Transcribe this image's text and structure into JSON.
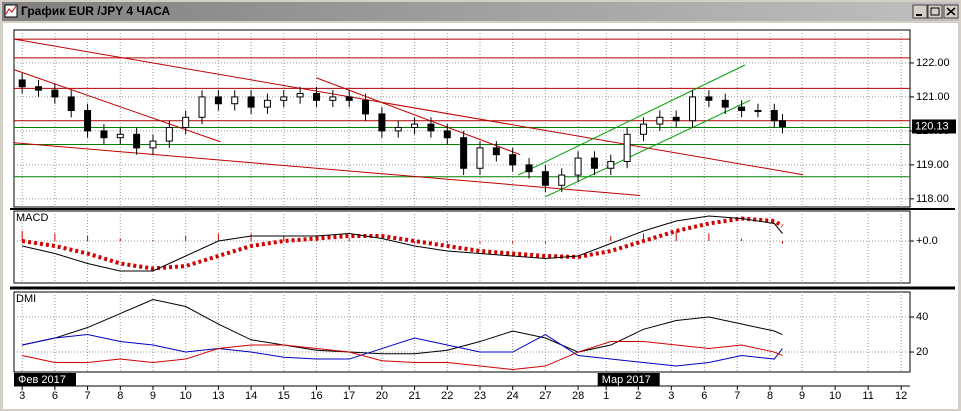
{
  "window": {
    "title": "График EUR /JPY 4 ЧАСА"
  },
  "chart_data": [
    {
      "type": "candlestick",
      "xlim": [
        -0.25,
        27.15
      ],
      "ylim": [
        117.76,
        122.97
      ],
      "yticks": [
        {
          "value": 122,
          "label": "122.00"
        },
        {
          "value": 121,
          "label": "121.00"
        },
        {
          "value": 120,
          "label": "120.00"
        },
        {
          "value": 119,
          "label": "119.00"
        },
        {
          "value": 118,
          "label": "118.00"
        }
      ],
      "grid": true,
      "last_price": 120.13,
      "x": [
        0,
        0.5,
        1,
        1.5,
        2,
        2.5,
        3,
        3.5,
        4,
        4.5,
        5,
        5.5,
        6,
        6.5,
        7,
        7.5,
        8,
        8.5,
        9,
        9.5,
        10,
        10.5,
        11,
        11.5,
        12,
        12.5,
        13,
        13.5,
        14,
        14.5,
        15,
        15.5,
        16,
        16.5,
        17,
        17.5,
        18,
        18.5,
        19,
        19.5,
        20,
        20.5,
        21,
        21.5,
        22,
        22.5,
        23,
        23.25
      ],
      "open": [
        121.5,
        121.3,
        121.2,
        121.0,
        120.6,
        120.0,
        119.8,
        119.9,
        119.5,
        119.7,
        120.1,
        120.4,
        121.0,
        120.8,
        121.0,
        120.7,
        120.9,
        121.0,
        121.1,
        120.9,
        121.0,
        120.9,
        120.5,
        120.0,
        120.1,
        120.2,
        120.0,
        119.8,
        118.9,
        119.5,
        119.3,
        119.0,
        118.8,
        118.4,
        118.7,
        119.2,
        118.9,
        119.1,
        119.9,
        120.2,
        120.4,
        120.3,
        121.0,
        120.9,
        120.7,
        120.6,
        120.6,
        120.3
      ],
      "high": [
        121.7,
        121.5,
        121.4,
        121.2,
        120.8,
        120.2,
        120.1,
        120.1,
        119.9,
        120.3,
        120.6,
        121.2,
        121.2,
        121.2,
        121.2,
        121.1,
        121.2,
        121.3,
        121.3,
        121.2,
        121.2,
        121.1,
        120.7,
        120.3,
        120.4,
        120.4,
        120.2,
        120.0,
        119.7,
        119.7,
        119.5,
        119.2,
        119.0,
        118.9,
        119.4,
        119.4,
        119.3,
        120.1,
        120.4,
        120.6,
        120.6,
        121.2,
        121.2,
        121.1,
        120.9,
        120.8,
        120.8,
        120.5
      ],
      "low": [
        121.1,
        121.0,
        120.8,
        120.4,
        119.8,
        119.6,
        119.6,
        119.3,
        119.3,
        119.5,
        119.9,
        120.2,
        120.6,
        120.6,
        120.5,
        120.5,
        120.7,
        120.8,
        120.7,
        120.7,
        120.7,
        120.3,
        119.8,
        119.8,
        119.9,
        119.8,
        119.6,
        118.7,
        118.7,
        119.1,
        118.8,
        118.6,
        118.2,
        118.2,
        118.5,
        118.7,
        118.7,
        118.9,
        119.7,
        120.0,
        120.1,
        120.1,
        120.7,
        120.5,
        120.4,
        120.4,
        120.1,
        119.93
      ],
      "close": [
        121.3,
        121.2,
        121.0,
        120.6,
        120.0,
        119.8,
        119.9,
        119.5,
        119.7,
        120.1,
        120.4,
        121.0,
        120.8,
        121.0,
        120.7,
        120.9,
        121.0,
        121.1,
        120.9,
        121.0,
        120.9,
        120.5,
        120.0,
        120.1,
        120.2,
        120.0,
        119.8,
        118.9,
        119.5,
        119.3,
        119.0,
        118.8,
        118.4,
        118.7,
        119.2,
        118.9,
        119.1,
        119.9,
        120.2,
        120.4,
        120.3,
        121.0,
        120.9,
        120.7,
        120.6,
        120.6,
        120.3,
        120.13
      ],
      "levels": [
        {
          "value": 122.7,
          "color": "#b00000"
        },
        {
          "value": 122.15,
          "color": "#b00000"
        },
        {
          "value": 121.25,
          "color": "#b00000"
        },
        {
          "value": 120.3,
          "color": "#b00000"
        },
        {
          "value": 120.1,
          "color": "#008000"
        },
        {
          "value": 119.6,
          "color": "#008000"
        },
        {
          "value": 118.65,
          "color": "#008000"
        }
      ],
      "trendlines": [
        {
          "x": [
            -0.24,
            23.88
          ],
          "y": [
            122.7,
            118.71
          ],
          "color": "#c00000"
        },
        {
          "x": [
            -0.24,
            6.06
          ],
          "y": [
            121.8,
            119.68
          ],
          "color": "#c00000"
        },
        {
          "x": [
            -0.24,
            18.9
          ],
          "y": [
            119.65,
            118.1
          ],
          "color": "#c00000"
        },
        {
          "x": [
            9.0,
            15.23
          ],
          "y": [
            121.56,
            119.3
          ],
          "color": "#c00000"
        },
        {
          "x": [
            15.17,
            22.1
          ],
          "y": [
            118.7,
            121.94
          ],
          "color": "#00a000"
        },
        {
          "x": [
            16.0,
            22.26
          ],
          "y": [
            118.06,
            120.9
          ],
          "color": "#00a000"
        }
      ]
    },
    {
      "type": "line",
      "title": "MACD",
      "xlim": [
        -0.25,
        27.15
      ],
      "ylim": [
        -0.84,
        0.6
      ],
      "yticks": [
        {
          "value": 0,
          "label": "+0.0"
        }
      ],
      "grid": true,
      "x": [
        0,
        1,
        2,
        3,
        4,
        5,
        6,
        7,
        8,
        9,
        10,
        11,
        12,
        13,
        14,
        15,
        16,
        17,
        18,
        19,
        20,
        21,
        22,
        23,
        23.25
      ],
      "series": [
        {
          "name": "histogram",
          "style": "bar",
          "color": "#d00000",
          "values": [
            0.2,
            0.15,
            0.1,
            0.05,
            0.02,
            0.1,
            0.15,
            0.15,
            0.1,
            0.05,
            0.05,
            0.0,
            -0.05,
            -0.05,
            -0.05,
            -0.05,
            -0.05,
            0.0,
            0.1,
            0.15,
            0.2,
            0.15,
            0.05,
            0.0,
            -0.05
          ]
        },
        {
          "name": "signal",
          "style": "dotted",
          "color": "#d00000",
          "values": [
            0.0,
            -0.1,
            -0.25,
            -0.45,
            -0.55,
            -0.5,
            -0.3,
            -0.1,
            0.0,
            0.05,
            0.1,
            0.1,
            0.0,
            -0.1,
            -0.2,
            -0.25,
            -0.3,
            -0.32,
            -0.2,
            0.0,
            0.2,
            0.35,
            0.45,
            0.4,
            0.3
          ]
        },
        {
          "name": "macd",
          "style": "line",
          "color": "#000000",
          "values": [
            -0.1,
            -0.25,
            -0.45,
            -0.6,
            -0.6,
            -0.3,
            0.0,
            0.1,
            0.1,
            0.1,
            0.15,
            0.05,
            -0.1,
            -0.2,
            -0.25,
            -0.3,
            -0.35,
            -0.3,
            -0.05,
            0.2,
            0.4,
            0.5,
            0.45,
            0.35,
            0.15
          ]
        }
      ]
    },
    {
      "type": "line",
      "title": "DMI",
      "xlim": [
        -0.25,
        27.15
      ],
      "ylim": [
        8.6,
        54.3
      ],
      "yticks": [
        40,
        20
      ],
      "grid": true,
      "x": [
        0,
        1,
        2,
        3,
        4,
        5,
        6,
        7,
        8,
        9,
        10,
        11,
        12,
        13,
        14,
        15,
        16,
        17,
        18,
        19,
        20,
        21,
        22,
        23,
        23.25
      ],
      "series": [
        {
          "name": "adx",
          "style": "line",
          "color": "#000000",
          "values": [
            24,
            28,
            34,
            42,
            50,
            46,
            36,
            27,
            24,
            21,
            20,
            19,
            19,
            21,
            26,
            32,
            28,
            20,
            24,
            33,
            38,
            40,
            36,
            32,
            30
          ]
        },
        {
          "name": "plus-di",
          "style": "line",
          "color": "#0000c0",
          "values": [
            24,
            28,
            30,
            26,
            24,
            20,
            22,
            20,
            17,
            16,
            16,
            22,
            28,
            24,
            20,
            20,
            30,
            18,
            16,
            14,
            12,
            14,
            18,
            16,
            22
          ]
        },
        {
          "name": "minus-di",
          "style": "line",
          "color": "#d00000",
          "values": [
            18,
            14,
            14,
            16,
            14,
            16,
            22,
            24,
            24,
            22,
            20,
            15,
            14,
            14,
            12,
            10,
            12,
            20,
            26,
            26,
            24,
            22,
            24,
            20,
            18
          ]
        }
      ],
      "xticks": [
        {
          "value": 0,
          "label": "3"
        },
        {
          "value": 1,
          "label": "6"
        },
        {
          "value": 2,
          "label": "7"
        },
        {
          "value": 3,
          "label": "8"
        },
        {
          "value": 4,
          "label": "9"
        },
        {
          "value": 5,
          "label": "10"
        },
        {
          "value": 6,
          "label": "13"
        },
        {
          "value": 7,
          "label": "14"
        },
        {
          "value": 8,
          "label": "15"
        },
        {
          "value": 9,
          "label": "16"
        },
        {
          "value": 10,
          "label": "17"
        },
        {
          "value": 11,
          "label": "20"
        },
        {
          "value": 12,
          "label": "21"
        },
        {
          "value": 13,
          "label": "22"
        },
        {
          "value": 14,
          "label": "23"
        },
        {
          "value": 15,
          "label": "24"
        },
        {
          "value": 16,
          "label": "27"
        },
        {
          "value": 17,
          "label": "28"
        },
        {
          "value": 17.86,
          "label": "1"
        },
        {
          "value": 18.84,
          "label": "2"
        },
        {
          "value": 19.85,
          "label": "3"
        },
        {
          "value": 20.86,
          "label": "6"
        },
        {
          "value": 21.87,
          "label": "7"
        },
        {
          "value": 22.87,
          "label": "8"
        },
        {
          "value": 23.85,
          "label": "9"
        },
        {
          "value": 24.86,
          "label": "10"
        },
        {
          "value": 25.87,
          "label": "11"
        },
        {
          "value": 26.88,
          "label": "12"
        }
      ],
      "month_labels": [
        {
          "value": -0.25,
          "label": "Фев 2017"
        },
        {
          "value": 17.6,
          "label": "Мар 2017"
        }
      ]
    }
  ]
}
